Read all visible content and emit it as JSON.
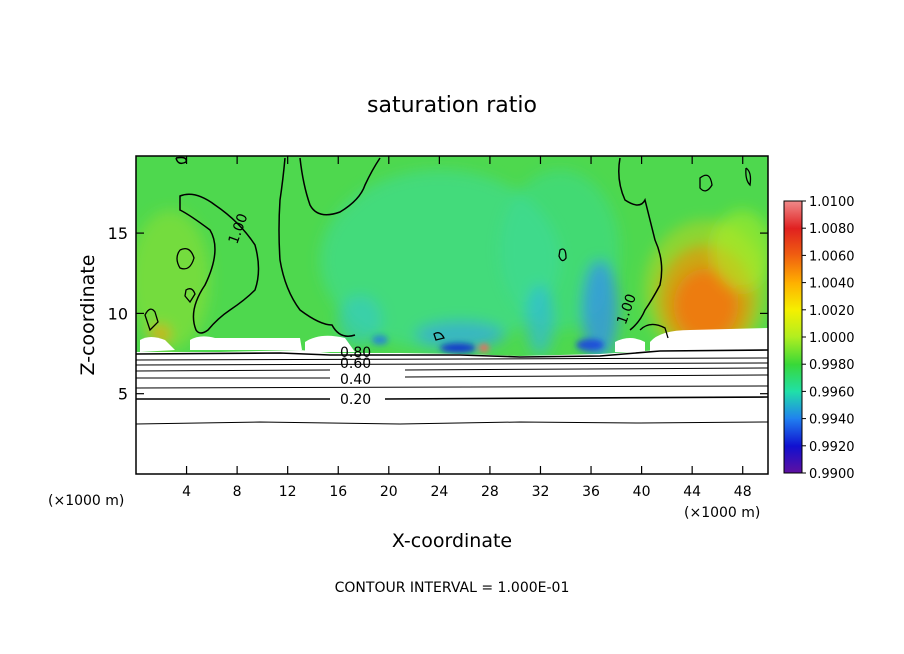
{
  "chart_data": {
    "type": "heatmap",
    "title": "saturation ratio",
    "xlabel": "X-coordinate",
    "ylabel": "Z-coordinate",
    "x_unit_left": "(×1000 m)",
    "x_unit_right": "(×1000 m)",
    "xlim": [
      0,
      50
    ],
    "ylim": [
      0,
      19.8
    ],
    "x_ticks": [
      4,
      8,
      12,
      16,
      20,
      24,
      28,
      32,
      36,
      40,
      44,
      48
    ],
    "y_ticks": [
      5,
      10,
      15
    ],
    "colorbar": {
      "labels": [
        "1.0100",
        "1.0080",
        "1.0060",
        "1.0040",
        "1.0020",
        "1.0000",
        "0.9980",
        "0.9960",
        "0.9940",
        "0.9920",
        "0.9900"
      ],
      "colors": [
        "#f08a8a",
        "#e02020",
        "#f06010",
        "#ffb000",
        "#f5f000",
        "#b0ee20",
        "#38d838",
        "#20e0a8",
        "#2080f0",
        "#1010d0",
        "#6010a0"
      ]
    },
    "contour_labels": [
      {
        "text": "1.00",
        "x": 7.5,
        "z": 15.8
      },
      {
        "text": "1.00",
        "x": 38.5,
        "z": 10.2
      },
      {
        "text": "0.80",
        "x": 17.6,
        "z": 7.3
      },
      {
        "text": "0.60",
        "x": 17.6,
        "z": 6.8
      },
      {
        "text": "0.40",
        "x": 17.6,
        "z": 6.0
      },
      {
        "text": "0.20",
        "x": 17.6,
        "z": 4.8
      }
    ],
    "footer": "CONTOUR INTERVAL = 1.000E-01"
  }
}
